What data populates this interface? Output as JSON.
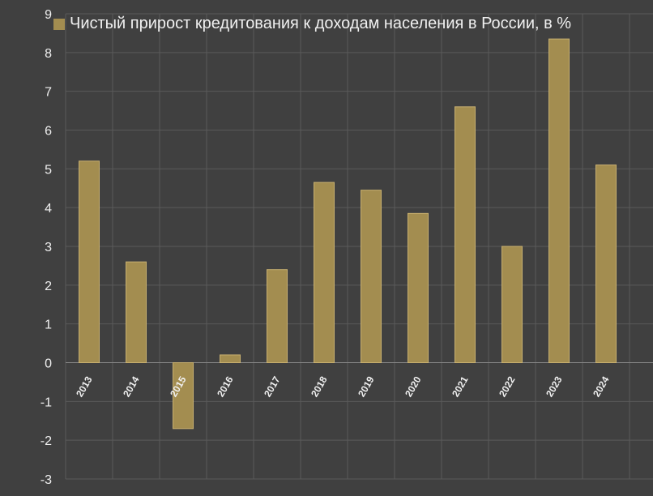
{
  "chart_data": {
    "type": "bar",
    "categories": [
      "2013",
      "2014",
      "2015",
      "2016",
      "2017",
      "2018",
      "2019",
      "2020",
      "2021",
      "2022",
      "2023",
      "2024"
    ],
    "series": [
      {
        "name": "Чистый прирост кредитования к доходам населения в России, в %",
        "values": [
          5.2,
          2.6,
          -1.7,
          0.2,
          2.4,
          4.65,
          4.45,
          3.85,
          6.6,
          3.0,
          8.35,
          5.1
        ]
      }
    ],
    "ylim": [
      -3,
      9
    ],
    "yticks": [
      "-3",
      "-2",
      "-1",
      "0",
      "1",
      "2",
      "3",
      "4",
      "5",
      "6",
      "7",
      "8",
      "9"
    ],
    "grid": true,
    "legend_position": "top",
    "colors": {
      "bar": "#a38d50",
      "bar_edge": "#c8b070",
      "background": "#404040",
      "grid": "#5a5a5a",
      "text": "#f0f0f0"
    }
  }
}
